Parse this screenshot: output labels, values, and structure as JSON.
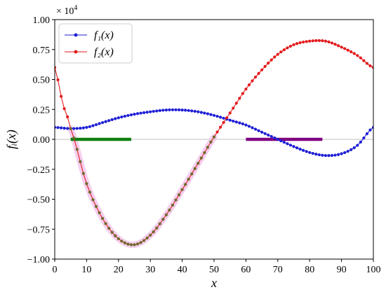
{
  "chart_data": {
    "type": "line",
    "xlabel": "x",
    "ylabel": "f_i(x)",
    "ylabel_text": "fᵢ(x)",
    "scale_label": "× 10",
    "scale_exp": "4",
    "xlim": [
      0,
      100
    ],
    "ylim": [
      -1.0,
      1.0
    ],
    "x_ticks": [
      0,
      10,
      20,
      30,
      40,
      50,
      60,
      70,
      80,
      90,
      100
    ],
    "y_ticks": [
      -1.0,
      -0.75,
      -0.5,
      -0.25,
      0.0,
      0.25,
      0.5,
      0.75,
      1.0
    ],
    "x_tick_labels": [
      "0",
      "10",
      "20",
      "30",
      "40",
      "50",
      "60",
      "70",
      "80",
      "90",
      "100"
    ],
    "y_tick_labels": [
      "−1.00",
      "−0.75",
      "−0.50",
      "−0.25",
      "0.00",
      "0.25",
      "0.50",
      "0.75",
      "1.00"
    ],
    "grid": false,
    "legend_position": "top-left",
    "series": [
      {
        "name": "f₁(x)",
        "color": "#1f1fd6",
        "x": [
          0,
          5,
          10,
          15,
          20,
          25,
          30,
          35,
          40,
          45,
          50,
          55,
          60,
          65,
          70,
          75,
          80,
          85,
          90,
          95,
          100
        ],
        "y": [
          0.1,
          0.09,
          0.1,
          0.14,
          0.18,
          0.21,
          0.23,
          0.245,
          0.245,
          0.23,
          0.2,
          0.16,
          0.12,
          0.06,
          0.0,
          -0.06,
          -0.11,
          -0.135,
          -0.12,
          -0.05,
          0.1
        ]
      },
      {
        "name": "f₂(x)",
        "color": "#e31a1c",
        "x": [
          0,
          2.5,
          5,
          10,
          15,
          20,
          25,
          30,
          35,
          40,
          45,
          50,
          55,
          60,
          65,
          70,
          75,
          80,
          85,
          90,
          95,
          100
        ],
        "y": [
          0.6,
          0.3,
          0.09,
          -0.37,
          -0.66,
          -0.83,
          -0.88,
          -0.8,
          -0.63,
          -0.42,
          -0.2,
          0.02,
          0.22,
          0.42,
          0.58,
          0.71,
          0.79,
          0.82,
          0.82,
          0.77,
          0.7,
          0.6
        ]
      }
    ],
    "segments": [
      {
        "color": "#0f7f0f",
        "x": [
          5,
          24
        ],
        "y": 0.0
      },
      {
        "color": "#800080",
        "x": [
          60,
          84
        ],
        "y": 0.0
      }
    ],
    "baseline": {
      "y": 0.0,
      "color": "#cccccc"
    },
    "highlight": {
      "x": [
        5,
        50
      ],
      "color": "#f3c2ea",
      "marker_color": "#6b6b2a"
    }
  }
}
